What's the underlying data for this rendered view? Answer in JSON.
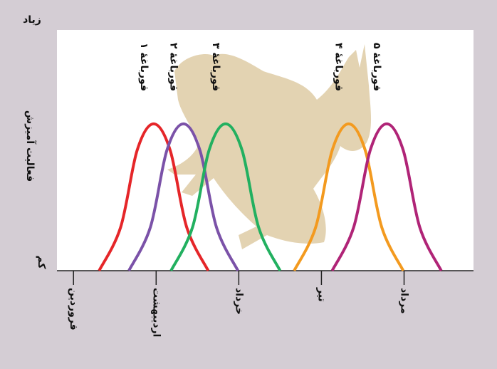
{
  "chart_data": {
    "type": "line",
    "y_label": "فعالیت آمیزش",
    "xlim": [
      0.8,
      5.84
    ],
    "xticks": [
      {
        "value": 1,
        "label": "فروردین"
      },
      {
        "value": 2,
        "label": "اردیبهشت"
      },
      {
        "value": 3,
        "label": "خرداد"
      },
      {
        "value": 4,
        "label": "تیر"
      },
      {
        "value": 5,
        "label": "مرداد"
      }
    ],
    "ylim": [
      0,
      1
    ],
    "yticks": [
      {
        "value": 0,
        "label": "کم"
      },
      {
        "value": 1,
        "label": "زیاد"
      }
    ],
    "series": [
      {
        "name": "قورباغهٔ ۱",
        "color": "#e52629",
        "x": [
          1.31,
          1.57,
          1.77,
          1.97,
          2.17,
          2.37,
          2.63
        ],
        "values": [
          0,
          0.18,
          0.5,
          0.61,
          0.5,
          0.18,
          0
        ]
      },
      {
        "name": "قورباغهٔ ۲",
        "color": "#7b52a8",
        "x": [
          1.67,
          1.93,
          2.13,
          2.33,
          2.53,
          2.73,
          2.99
        ],
        "values": [
          0,
          0.18,
          0.5,
          0.61,
          0.5,
          0.18,
          0
        ]
      },
      {
        "name": "قورباغهٔ ۳",
        "color": "#22b060",
        "x": [
          2.18,
          2.44,
          2.64,
          2.84,
          3.04,
          3.24,
          3.5
        ],
        "values": [
          0,
          0.18,
          0.5,
          0.61,
          0.5,
          0.18,
          0
        ]
      },
      {
        "name": "قورباغهٔ ۴",
        "color": "#f39a1f",
        "x": [
          3.67,
          3.93,
          4.13,
          4.33,
          4.53,
          4.73,
          4.99
        ],
        "values": [
          0,
          0.18,
          0.5,
          0.61,
          0.5,
          0.18,
          0
        ]
      },
      {
        "name": "قورباغهٔ ۵",
        "color": "#b02477",
        "x": [
          4.13,
          4.39,
          4.59,
          4.79,
          4.99,
          5.19,
          5.45
        ],
        "values": [
          0,
          0.18,
          0.5,
          0.61,
          0.5,
          0.18,
          0
        ]
      }
    ]
  }
}
